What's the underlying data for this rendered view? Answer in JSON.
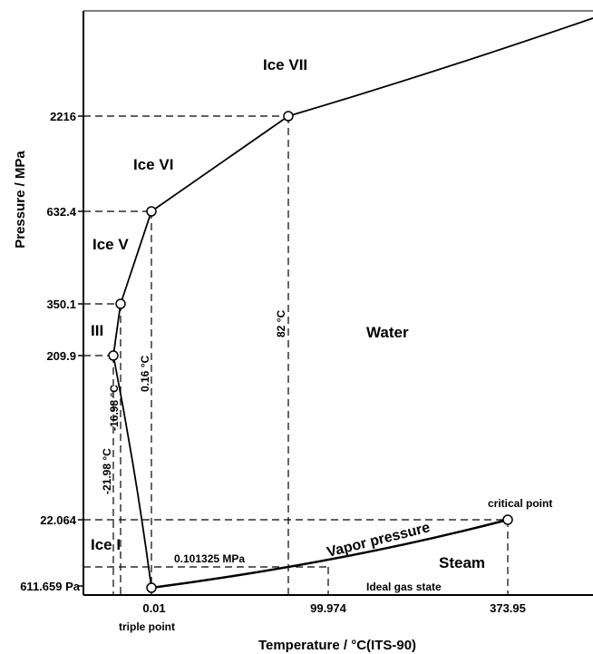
{
  "axes": {
    "x_title": "Temperature / °C(ITS-90)",
    "y_title": "Pressure / MPa"
  },
  "y_ticks": [
    "2216",
    "632.4",
    "350.1",
    "209.9",
    "22.064",
    "611.659 Pa"
  ],
  "x_ticks": [
    "0.01",
    "99.974",
    "373.95"
  ],
  "regions": {
    "ice_vii": "Ice VII",
    "ice_vi": "Ice VI",
    "ice_v": "Ice V",
    "ice_iii": "III",
    "ice_i": "Ice I",
    "water": "Water",
    "steam": "Steam"
  },
  "annotations": {
    "t_minus_21_98": "-21.98 °C",
    "t_minus_16_98": "-16.98 °C",
    "t_0_16": "0.16 °C",
    "t_82": "82 °C",
    "p_atm": "0.101325 MPa",
    "vapor_pressure": "Vapor pressure",
    "ideal_gas": "Ideal gas state",
    "critical_point": "critical point",
    "triple_point": "triple point"
  },
  "colors": {
    "line": "#000000",
    "background": "#ffffff"
  }
}
